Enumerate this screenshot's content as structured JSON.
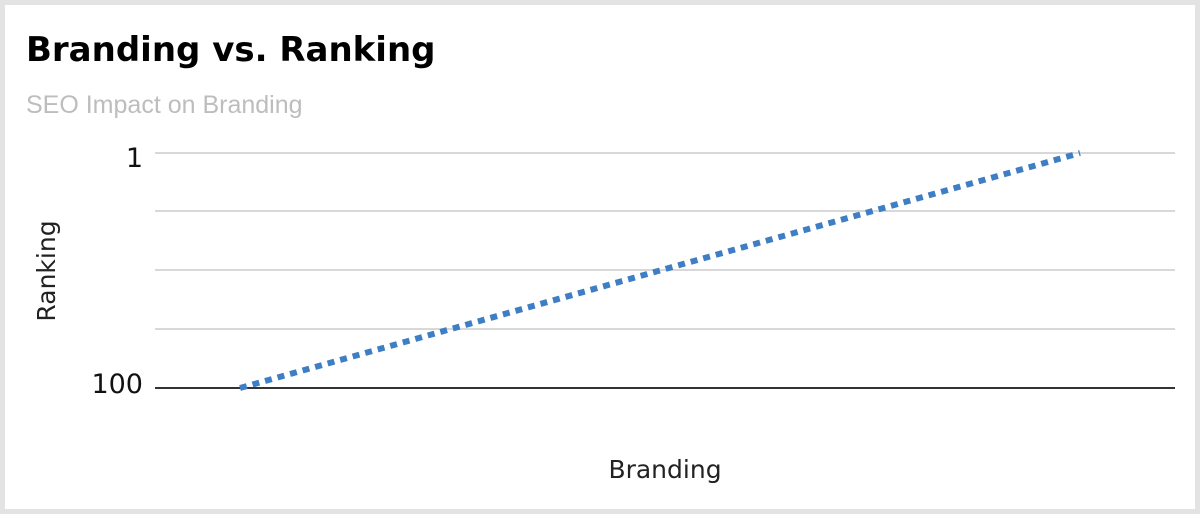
{
  "chart_data": {
    "type": "line",
    "title": "Branding vs. Ranking",
    "subtitle": "SEO Impact on Branding",
    "xlabel": "Branding",
    "ylabel": "Ranking",
    "y_axis": {
      "reversed": true,
      "scale": "log",
      "ticks": [
        "1",
        "100"
      ],
      "ylim": [
        100,
        1
      ]
    },
    "grid": true,
    "series": [
      {
        "color": "#3d7ec4",
        "style": "dotted",
        "x": [
          0,
          1
        ],
        "y": [
          100,
          1
        ]
      }
    ]
  }
}
